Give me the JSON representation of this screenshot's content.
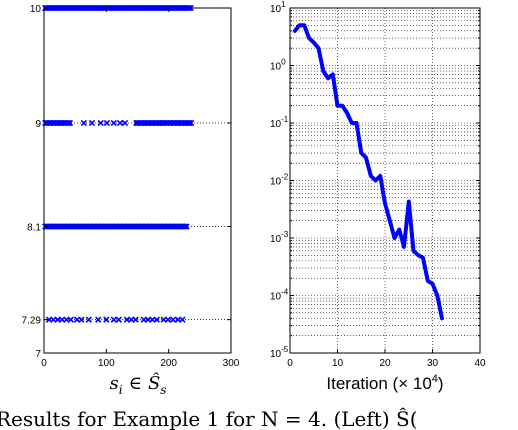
{
  "caption": "Results for Example 1 for N = 4. (Left) Ŝ(",
  "chart_data": [
    {
      "type": "scatter",
      "xlabel": "s_i ∈ Ŝ_s",
      "xlabel_parts": {
        "var": "s",
        "sub": "i",
        "rel": "∈",
        "set": "Ŝ",
        "setsub": "s"
      },
      "xlim": [
        0,
        300
      ],
      "ylim": [
        7,
        10
      ],
      "xticks": [
        "0",
        "100",
        "200",
        "300"
      ],
      "yticks": [
        "7",
        "7.29",
        "8.1",
        "9",
        "10"
      ],
      "ytick_values": [
        7,
        7.29,
        8.1,
        9,
        10
      ],
      "marker": "x",
      "color": "#0000ff",
      "series": [
        {
          "y": 10,
          "x_ranges": [
            [
              2,
              236
            ]
          ],
          "x_points": []
        },
        {
          "y": 9,
          "x_ranges": [
            [
              2,
              42
            ],
            [
              148,
              236
            ]
          ],
          "x_points": [
            64,
            77,
            91,
            101,
            112,
            122,
            130
          ]
        },
        {
          "y": 8.1,
          "x_ranges": [
            [
              2,
              230
            ]
          ],
          "x_points": []
        },
        {
          "y": 7.29,
          "x_ranges": [],
          "x_points": [
            8,
            15,
            22,
            29,
            36,
            43,
            53,
            60,
            72,
            87,
            100,
            112,
            120,
            133,
            140,
            147,
            160,
            167,
            174,
            181,
            192,
            199,
            207,
            215,
            222
          ]
        }
      ]
    },
    {
      "type": "line",
      "xlabel": "Iteration (× 10^4)",
      "xlabel_parts": {
        "pre": "Iteration (× 10",
        "exp": "4",
        "post": ")"
      },
      "xlim": [
        0,
        40
      ],
      "ylim": [
        1e-05,
        10
      ],
      "yscale": "log",
      "grid": true,
      "xticks": [
        "0",
        "10",
        "20",
        "30",
        "40"
      ],
      "ytick_exponents": [
        "1",
        "0",
        "-1",
        "-2",
        "-3",
        "-4",
        "-5"
      ],
      "ytick_base": "10",
      "color": "#0000ff",
      "x": [
        1,
        2,
        3,
        4,
        5,
        6,
        7,
        8,
        9,
        10,
        11,
        12,
        13,
        14,
        15,
        16,
        17,
        18,
        19,
        20,
        21,
        22,
        23,
        24,
        25,
        26,
        27,
        28,
        29,
        30,
        31,
        32
      ],
      "y": [
        4,
        5,
        5,
        3,
        2.5,
        2,
        0.8,
        0.6,
        0.7,
        0.2,
        0.2,
        0.15,
        0.1,
        0.1,
        0.03,
        0.025,
        0.012,
        0.01,
        0.012,
        0.004,
        0.002,
        0.001,
        0.0014,
        0.0007,
        0.0043,
        0.0006,
        0.0005,
        0.00045,
        0.00018,
        0.00016,
        0.0001,
        4e-05
      ]
    }
  ]
}
